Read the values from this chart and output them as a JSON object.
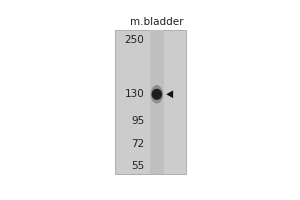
{
  "title": "m.bladder",
  "mw_markers": [
    250,
    130,
    95,
    72,
    55
  ],
  "band_mw": 130,
  "fig_bg": "#ffffff",
  "gel_bg": "#cccccc",
  "lane_bg": "#bbbbbb",
  "band_color": "#111111",
  "arrow_color": "#111111",
  "text_color": "#222222",
  "title_fontsize": 7.5,
  "marker_fontsize": 7.5,
  "log_min": 50,
  "log_max": 280
}
